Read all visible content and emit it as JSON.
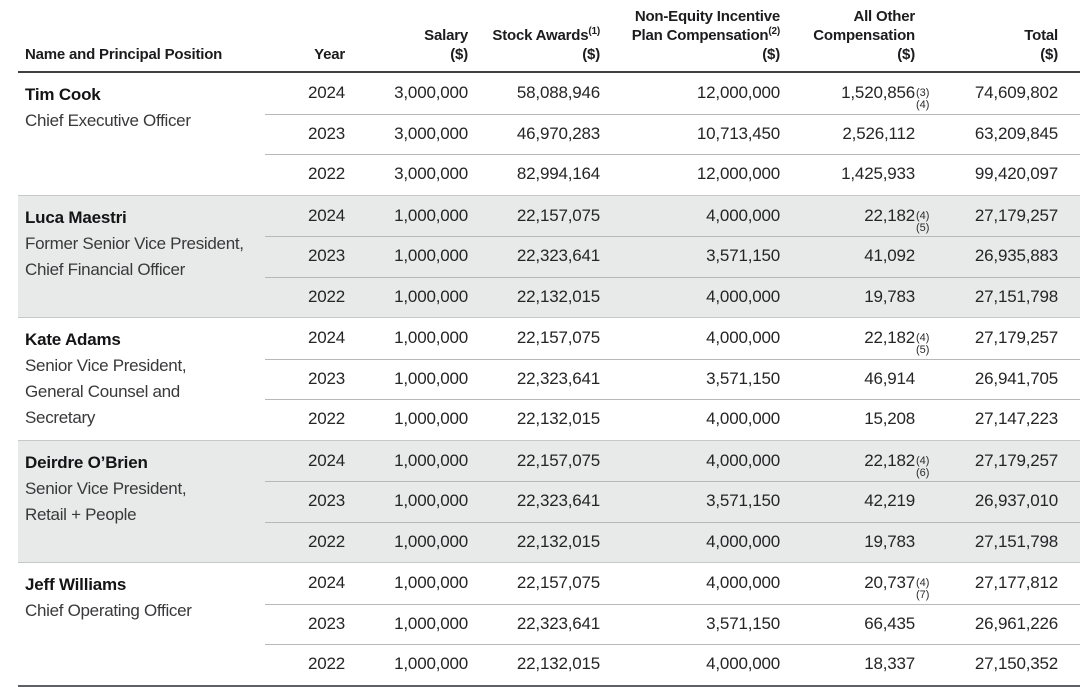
{
  "table": {
    "header": {
      "name": "Name and Principal Position",
      "year": "Year",
      "salary_l1": "Salary",
      "salary_l2": "($)",
      "stock_l1": "Stock Awards",
      "stock_sup": "(1)",
      "stock_l2": "($)",
      "neip_l1": "Non-Equity Incentive",
      "neip_l2": "Plan Compensation",
      "neip_sup": "(2)",
      "neip_l3": "($)",
      "aoc_l1": "All Other",
      "aoc_l2": "Compensation",
      "aoc_l3": "($)",
      "total_l1": "Total",
      "total_l2": "($)"
    },
    "sections": [
      {
        "name": "Tim Cook",
        "title_lines": [
          "Chief Executive Officer"
        ],
        "shaded": false,
        "rows": [
          {
            "year": "2024",
            "salary": "3,000,000",
            "stock_awards": "58,088,946",
            "non_equity": "12,000,000",
            "all_other": "1,520,856",
            "all_other_footnote": "(3)(4)",
            "total": "74,609,802"
          },
          {
            "year": "2023",
            "salary": "3,000,000",
            "stock_awards": "46,970,283",
            "non_equity": "10,713,450",
            "all_other": "2,526,112",
            "all_other_footnote": "",
            "total": "63,209,845"
          },
          {
            "year": "2022",
            "salary": "3,000,000",
            "stock_awards": "82,994,164",
            "non_equity": "12,000,000",
            "all_other": "1,425,933",
            "all_other_footnote": "",
            "total": "99,420,097"
          }
        ]
      },
      {
        "name": "Luca Maestri",
        "title_lines": [
          "Former Senior Vice President,",
          "Chief Financial Officer"
        ],
        "shaded": true,
        "rows": [
          {
            "year": "2024",
            "salary": "1,000,000",
            "stock_awards": "22,157,075",
            "non_equity": "4,000,000",
            "all_other": "22,182",
            "all_other_footnote": "(4)(5)",
            "total": "27,179,257"
          },
          {
            "year": "2023",
            "salary": "1,000,000",
            "stock_awards": "22,323,641",
            "non_equity": "3,571,150",
            "all_other": "41,092",
            "all_other_footnote": "",
            "total": "26,935,883"
          },
          {
            "year": "2022",
            "salary": "1,000,000",
            "stock_awards": "22,132,015",
            "non_equity": "4,000,000",
            "all_other": "19,783",
            "all_other_footnote": "",
            "total": "27,151,798"
          }
        ]
      },
      {
        "name": "Kate Adams",
        "title_lines": [
          "Senior Vice President,",
          "General Counsel and",
          "Secretary"
        ],
        "shaded": false,
        "rows": [
          {
            "year": "2024",
            "salary": "1,000,000",
            "stock_awards": "22,157,075",
            "non_equity": "4,000,000",
            "all_other": "22,182",
            "all_other_footnote": "(4)(5)",
            "total": "27,179,257"
          },
          {
            "year": "2023",
            "salary": "1,000,000",
            "stock_awards": "22,323,641",
            "non_equity": "3,571,150",
            "all_other": "46,914",
            "all_other_footnote": "",
            "total": "26,941,705"
          },
          {
            "year": "2022",
            "salary": "1,000,000",
            "stock_awards": "22,132,015",
            "non_equity": "4,000,000",
            "all_other": "15,208",
            "all_other_footnote": "",
            "total": "27,147,223"
          }
        ]
      },
      {
        "name": "Deirdre O’Brien",
        "title_lines": [
          "Senior Vice President,",
          "Retail + People"
        ],
        "shaded": true,
        "rows": [
          {
            "year": "2024",
            "salary": "1,000,000",
            "stock_awards": "22,157,075",
            "non_equity": "4,000,000",
            "all_other": "22,182",
            "all_other_footnote": "(4)(6)",
            "total": "27,179,257"
          },
          {
            "year": "2023",
            "salary": "1,000,000",
            "stock_awards": "22,323,641",
            "non_equity": "3,571,150",
            "all_other": "42,219",
            "all_other_footnote": "",
            "total": "26,937,010"
          },
          {
            "year": "2022",
            "salary": "1,000,000",
            "stock_awards": "22,132,015",
            "non_equity": "4,000,000",
            "all_other": "19,783",
            "all_other_footnote": "",
            "total": "27,151,798"
          }
        ]
      },
      {
        "name": "Jeff Williams",
        "title_lines": [
          "Chief Operating Officer"
        ],
        "shaded": false,
        "rows": [
          {
            "year": "2024",
            "salary": "1,000,000",
            "stock_awards": "22,157,075",
            "non_equity": "4,000,000",
            "all_other": "20,737",
            "all_other_footnote": "(4)(7)",
            "total": "27,177,812"
          },
          {
            "year": "2023",
            "salary": "1,000,000",
            "stock_awards": "22,323,641",
            "non_equity": "3,571,150",
            "all_other": "66,435",
            "all_other_footnote": "",
            "total": "26,961,226"
          },
          {
            "year": "2022",
            "salary": "1,000,000",
            "stock_awards": "22,132,015",
            "non_equity": "4,000,000",
            "all_other": "18,337",
            "all_other_footnote": "",
            "total": "27,150,352"
          }
        ]
      }
    ]
  },
  "colors": {
    "text_primary": "#1c1c1e",
    "text_secondary": "#39393b",
    "shaded_section_bg": "#e8eae9",
    "header_rule": "#3e4043",
    "row_divider": "#b7b9b8",
    "section_divider": "#c7c9c8",
    "bottom_rule": "#5d6165"
  }
}
